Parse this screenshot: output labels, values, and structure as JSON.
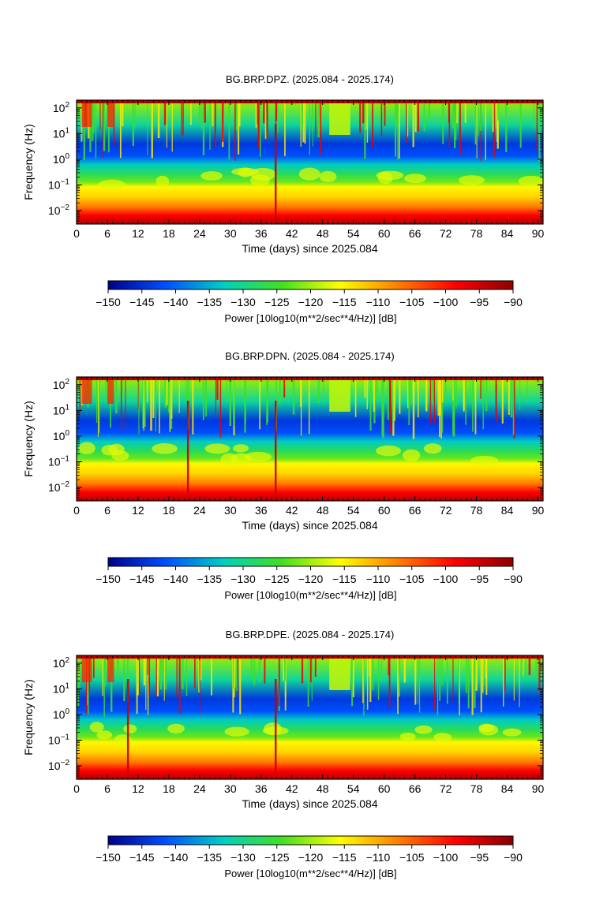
{
  "chart_data": [
    {
      "type": "heatmap",
      "title": "BG.BRP.DPZ. (2025.084 - 2025.174)",
      "xlabel": "Time (days) since 2025.084",
      "ylabel": "Frequency (Hz)",
      "xlim": [
        0,
        91
      ],
      "ylim": [
        0.003,
        200
      ],
      "yscale": "log",
      "x_ticks": [
        "0",
        "6",
        "12",
        "18",
        "24",
        "30",
        "36",
        "42",
        "48",
        "54",
        "60",
        "66",
        "72",
        "78",
        "84",
        "90"
      ],
      "y_ticks": [
        {
          "base": "10",
          "exp": "2"
        },
        {
          "base": "10",
          "exp": "1"
        },
        {
          "base": "10",
          "exp": "0"
        },
        {
          "base": "10",
          "exp": "−1"
        },
        {
          "base": "10",
          "exp": "−2"
        }
      ],
      "colorbar": {
        "label": "Power [10log10(m**2/sec**4/Hz)] [dB]",
        "range": [
          -150,
          -90
        ],
        "ticks": [
          "−150",
          "−145",
          "−140",
          "−135",
          "−130",
          "−125",
          "−120",
          "−115",
          "−110",
          "−105",
          "−100",
          "−95",
          "−90"
        ]
      }
    },
    {
      "type": "heatmap",
      "title": "BG.BRP.DPN. (2025.084 - 2025.174)",
      "xlabel": "Time (days) since 2025.084",
      "ylabel": "Frequency (Hz)",
      "xlim": [
        0,
        91
      ],
      "ylim": [
        0.003,
        200
      ],
      "yscale": "log",
      "x_ticks": [
        "0",
        "6",
        "12",
        "18",
        "24",
        "30",
        "36",
        "42",
        "48",
        "54",
        "60",
        "66",
        "72",
        "78",
        "84",
        "90"
      ],
      "y_ticks": [
        {
          "base": "10",
          "exp": "2"
        },
        {
          "base": "10",
          "exp": "1"
        },
        {
          "base": "10",
          "exp": "0"
        },
        {
          "base": "10",
          "exp": "−1"
        },
        {
          "base": "10",
          "exp": "−2"
        }
      ],
      "colorbar": {
        "label": "Power [10log10(m**2/sec**4/Hz)] [dB]",
        "range": [
          -150,
          -90
        ],
        "ticks": [
          "−150",
          "−145",
          "−140",
          "−135",
          "−130",
          "−125",
          "−120",
          "−115",
          "−110",
          "−105",
          "−100",
          "−95",
          "−90"
        ]
      }
    },
    {
      "type": "heatmap",
      "title": "BG.BRP.DPE. (2025.084 - 2025.174)",
      "xlabel": "Time (days) since 2025.084",
      "ylabel": "Frequency (Hz)",
      "xlim": [
        0,
        91
      ],
      "ylim": [
        0.003,
        200
      ],
      "yscale": "log",
      "x_ticks": [
        "0",
        "6",
        "12",
        "18",
        "24",
        "30",
        "36",
        "42",
        "48",
        "54",
        "60",
        "66",
        "72",
        "78",
        "84",
        "90"
      ],
      "y_ticks": [
        {
          "base": "10",
          "exp": "2"
        },
        {
          "base": "10",
          "exp": "1"
        },
        {
          "base": "10",
          "exp": "0"
        },
        {
          "base": "10",
          "exp": "−1"
        },
        {
          "base": "10",
          "exp": "−2"
        }
      ],
      "colorbar": {
        "label": "Power [10log10(m**2/sec**4/Hz)] [dB]",
        "range": [
          -150,
          -90
        ],
        "ticks": [
          "−150",
          "−145",
          "−140",
          "−135",
          "−130",
          "−125",
          "−120",
          "−115",
          "−110",
          "−105",
          "−100",
          "−95",
          "−90"
        ]
      }
    }
  ],
  "colormap_stops": [
    "#00008b",
    "#0050ff",
    "#00d0c0",
    "#40e020",
    "#ffff00",
    "#ff8000",
    "#ff0000",
    "#8b0000"
  ]
}
